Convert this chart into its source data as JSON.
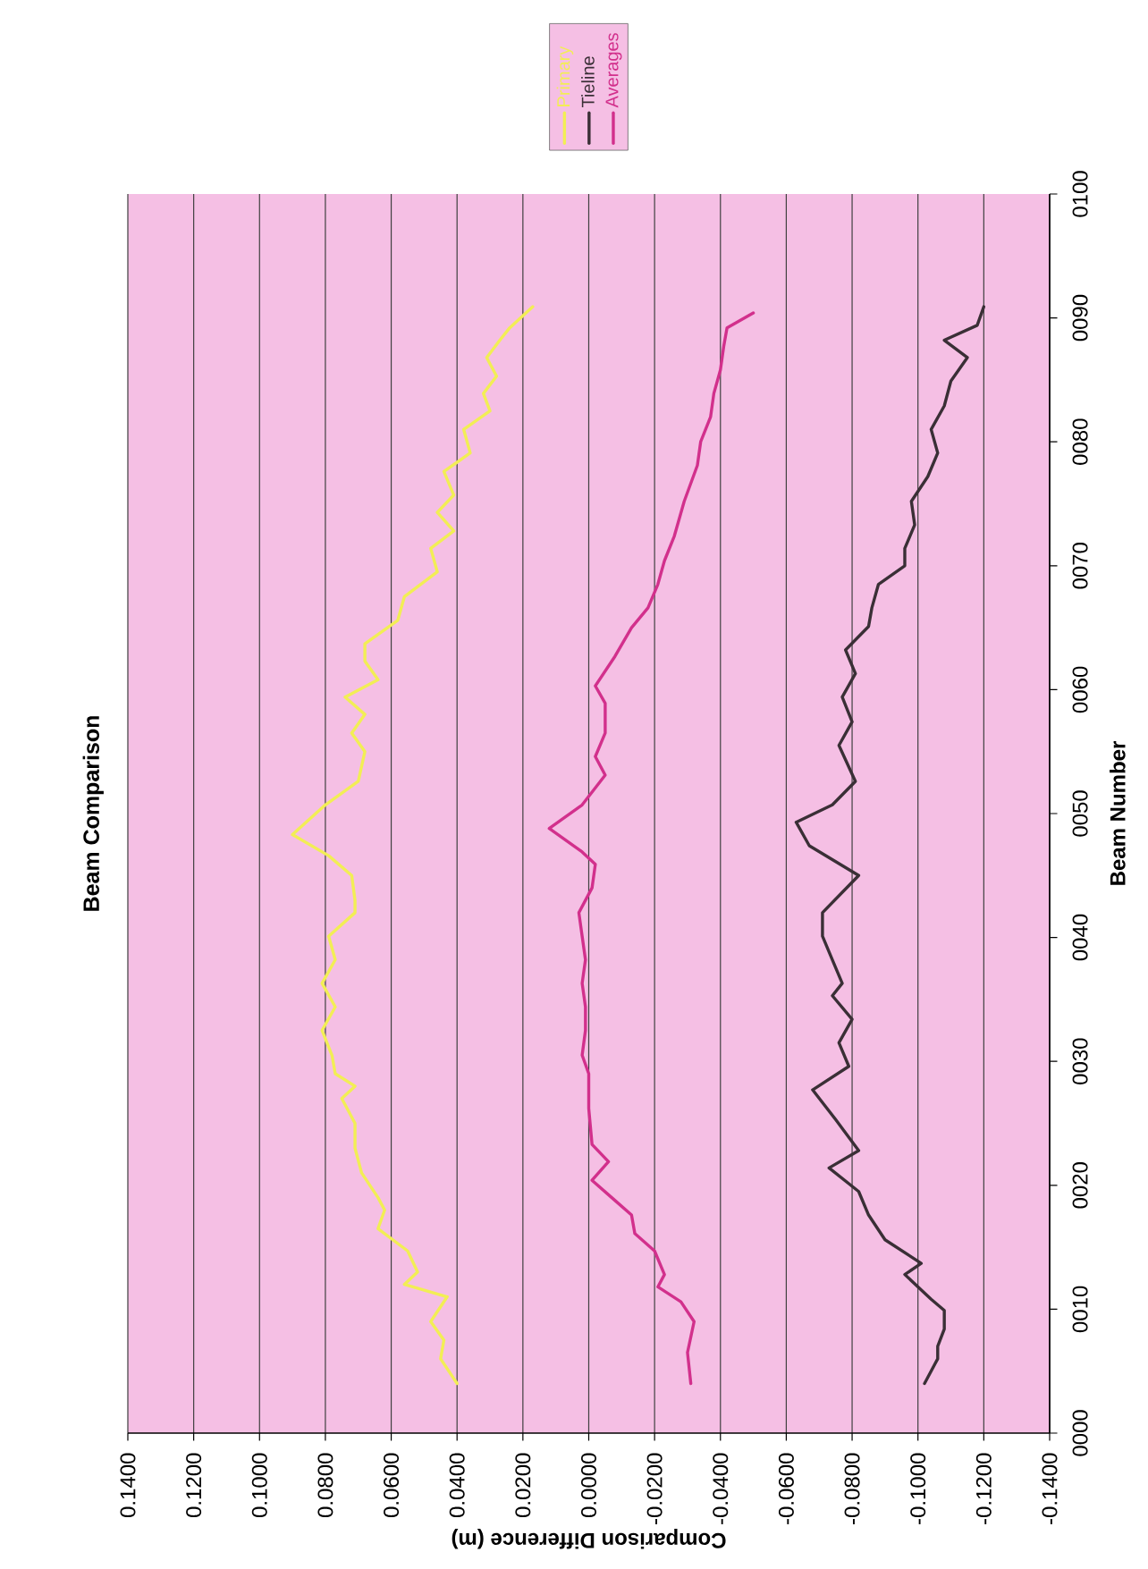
{
  "chart_data": {
    "type": "line",
    "title": "Beam Comparison",
    "xlabel": "Comparison Difference (m)",
    "ylabel": "Beam Number",
    "xlim": [
      0.14,
      -0.14
    ],
    "ylim": [
      0,
      100
    ],
    "xticks": [
      {
        "value": 0.14,
        "label": "0.1400"
      },
      {
        "value": 0.12,
        "label": "0.1200"
      },
      {
        "value": 0.1,
        "label": "0.1000"
      },
      {
        "value": 0.08,
        "label": "0.0800"
      },
      {
        "value": 0.06,
        "label": "0.0600"
      },
      {
        "value": 0.04,
        "label": "0.0400"
      },
      {
        "value": 0.02,
        "label": "0.0200"
      },
      {
        "value": 0,
        "label": "0.0000"
      },
      {
        "value": -0.02,
        "label": "-0.0200"
      },
      {
        "value": -0.04,
        "label": "-0.0400"
      },
      {
        "value": -0.06,
        "label": "-0.0600"
      },
      {
        "value": -0.08,
        "label": "-0.0800"
      },
      {
        "value": -0.1,
        "label": "-0.1000"
      },
      {
        "value": -0.12,
        "label": "-0.1200"
      },
      {
        "value": -0.14,
        "label": "-0.1400"
      }
    ],
    "yticks": [
      {
        "value": 0,
        "label": "0000"
      },
      {
        "value": 10,
        "label": "0010"
      },
      {
        "value": 20,
        "label": "0020"
      },
      {
        "value": 30,
        "label": "0030"
      },
      {
        "value": 40,
        "label": "0040"
      },
      {
        "value": 50,
        "label": "0050"
      },
      {
        "value": 60,
        "label": "0060"
      },
      {
        "value": 70,
        "label": "0070"
      },
      {
        "value": 80,
        "label": "0080"
      },
      {
        "value": 90,
        "label": "0090"
      },
      {
        "value": 100,
        "label": "0100"
      }
    ],
    "grid": "x",
    "legend": "top right",
    "marker": "none",
    "line_style": "solid",
    "series": [
      {
        "name": "Primary",
        "color": "#f2ee55",
        "x": [
          0.04,
          0.045,
          0.044,
          0.048,
          0.043,
          0.056,
          0.052,
          0.055,
          0.064,
          0.062,
          0.064,
          0.069,
          0.071,
          0.071,
          0.075,
          0.071,
          0.077,
          0.078,
          0.081,
          0.077,
          0.081,
          0.077,
          0.079,
          0.071,
          0.071,
          0.072,
          0.079,
          0.09,
          0.08,
          0.07,
          0.068,
          0.072,
          0.068,
          0.074,
          0.064,
          0.068,
          0.068,
          0.058,
          0.056,
          0.046,
          0.048,
          0.041,
          0.046,
          0.041,
          0.044,
          0.036,
          0.038,
          0.03,
          0.032,
          0.028,
          0.031,
          0.027,
          0.024,
          0.017
        ],
        "values": [
          4,
          6,
          7.5,
          9,
          11,
          12,
          13,
          14.7,
          16.5,
          18,
          19,
          21,
          23,
          25,
          27,
          28,
          29,
          30.5,
          32.5,
          34.4,
          36.3,
          38.2,
          40.1,
          42,
          43,
          45,
          46.6,
          48.3,
          50.7,
          52.6,
          55,
          56.5,
          58,
          59.4,
          60.8,
          62.3,
          63.7,
          65.6,
          67.5,
          69.5,
          71.4,
          72.8,
          74.3,
          75.7,
          77.6,
          79.1,
          81,
          82.5,
          83.9,
          85.3,
          86.8,
          88.2,
          89.2,
          90.9
        ]
      },
      {
        "name": "Tieline",
        "color": "#3a2f36",
        "x": [
          -0.102,
          -0.106,
          -0.106,
          -0.108,
          -0.108,
          -0.104,
          -0.096,
          -0.101,
          -0.09,
          -0.085,
          -0.082,
          -0.073,
          -0.082,
          -0.075,
          -0.068,
          -0.079,
          -0.076,
          -0.08,
          -0.074,
          -0.077,
          -0.074,
          -0.071,
          -0.071,
          -0.082,
          -0.067,
          -0.063,
          -0.074,
          -0.081,
          -0.076,
          -0.08,
          -0.077,
          -0.081,
          -0.078,
          -0.085,
          -0.086,
          -0.088,
          -0.096,
          -0.096,
          -0.099,
          -0.098,
          -0.103,
          -0.106,
          -0.104,
          -0.108,
          -0.11,
          -0.115,
          -0.108,
          -0.118,
          -0.12
        ],
        "values": [
          4,
          6,
          7,
          8.4,
          9.9,
          10.8,
          12.8,
          13.7,
          15.6,
          17.6,
          19.5,
          21.4,
          22.8,
          25.3,
          27.7,
          29.6,
          31.5,
          33.4,
          35.3,
          36.3,
          38.2,
          40.1,
          42,
          45,
          47.4,
          49.3,
          50.7,
          52.6,
          55.5,
          57.4,
          59.4,
          61.3,
          63.2,
          65.1,
          66.6,
          68.5,
          70,
          71.4,
          73.3,
          75.2,
          77.2,
          79.1,
          81,
          82.9,
          84.9,
          86.8,
          88.2,
          89.4,
          90.9
        ]
      },
      {
        "name": "Averages",
        "color": "#d2308c",
        "x": [
          -0.031,
          -0.03,
          -0.032,
          -0.028,
          -0.021,
          -0.023,
          -0.02,
          -0.014,
          -0.013,
          -0.007,
          -0.001,
          -0.006,
          -0.001,
          0.0,
          0.0,
          0.002,
          0.001,
          0.001,
          0.002,
          0.001,
          0.002,
          0.003,
          -0.001,
          -0.002,
          0.002,
          0.012,
          0.002,
          -0.005,
          -0.002,
          -0.005,
          -0.005,
          -0.002,
          -0.008,
          -0.013,
          -0.018,
          -0.021,
          -0.023,
          -0.026,
          -0.029,
          -0.033,
          -0.034,
          -0.037,
          -0.038,
          -0.04,
          -0.041,
          -0.042,
          -0.05
        ],
        "values": [
          4,
          6.5,
          9,
          10.6,
          11.8,
          12.8,
          14.7,
          16.1,
          17.6,
          19,
          20.4,
          21.9,
          23.3,
          26.2,
          29,
          30.5,
          32.5,
          34.4,
          36.3,
          38.2,
          40.1,
          42,
          44,
          45.9,
          46.9,
          48.8,
          50.7,
          53.1,
          54.6,
          56.5,
          58.9,
          60.3,
          62.7,
          65,
          66.6,
          68.5,
          70.4,
          72.4,
          75.2,
          78.1,
          80,
          82,
          83.9,
          85.8,
          87.7,
          89.2,
          90.4
        ]
      }
    ]
  }
}
